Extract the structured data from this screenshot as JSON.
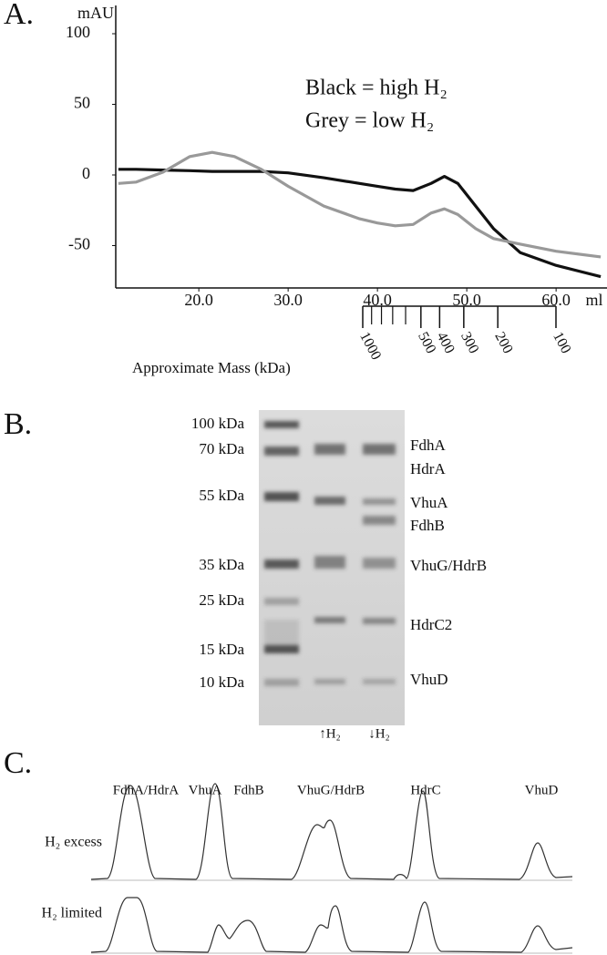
{
  "chart_data": {
    "type": "line",
    "panel_label": "A.",
    "ylabel": "mAU",
    "xlabel": "ml",
    "x": [
      11,
      13,
      16,
      19,
      21.5,
      24,
      27,
      30,
      34,
      38,
      40,
      42,
      44,
      46,
      47.5,
      49,
      51,
      53,
      56,
      60,
      65
    ],
    "series": [
      {
        "name": "Black = high H₂",
        "color": "#111111",
        "values": [
          4,
          4,
          3.5,
          3,
          2.5,
          2.5,
          2.5,
          1.5,
          -2,
          -6,
          -8,
          -10,
          -11,
          -6,
          -1,
          -6,
          -22,
          -38,
          -55,
          -64,
          -72
        ]
      },
      {
        "name": "Grey = low H₂",
        "color": "#999999",
        "values": [
          -6,
          -5,
          2,
          13,
          16,
          13,
          4,
          -8,
          -22,
          -31,
          -34,
          -36,
          -35,
          -27,
          -24,
          -28,
          -38,
          -45,
          -49,
          -54,
          -58
        ]
      }
    ],
    "xlim": [
      10.7,
      65.7
    ],
    "ylim": [
      -80,
      120
    ],
    "xticks": [
      {
        "value": 20,
        "label": "20.0"
      },
      {
        "value": 30,
        "label": "30.0"
      },
      {
        "value": 40,
        "label": "40.0"
      },
      {
        "value": 50,
        "label": "50.0"
      },
      {
        "value": 60,
        "label": "60.0"
      }
    ],
    "yticks": [
      -50,
      0,
      50,
      100
    ],
    "grid": false,
    "mass_axis": {
      "label": "Approximate Mass (kDa)",
      "log": true,
      "lim": [
        1000,
        100
      ],
      "ticks": [
        1000,
        500,
        400,
        300,
        200,
        100
      ],
      "minor_ticks": [
        900,
        800,
        700,
        600
      ]
    }
  },
  "gel": {
    "panel_label": "B.",
    "markers": [
      "100 kDa",
      "70 kDa",
      "55 kDa",
      "35 kDa",
      "25 kDa",
      "15 kDa",
      "10 kDa"
    ],
    "bands": [
      "FdhA",
      "HdrA",
      "VhuA",
      "FdhB",
      "VhuG/HdrB",
      "HdrC2",
      "VhuD"
    ],
    "lanes": [
      "↑H₂",
      "↓H₂"
    ]
  },
  "densitometry": {
    "panel_label": "C.",
    "columns": [
      "FdhA/HdrA",
      "VhuA",
      "FdhB",
      "VhuG/HdrB",
      "HdrC",
      "VhuD"
    ],
    "rows": [
      "H₂ excess",
      "H₂ limited"
    ]
  }
}
